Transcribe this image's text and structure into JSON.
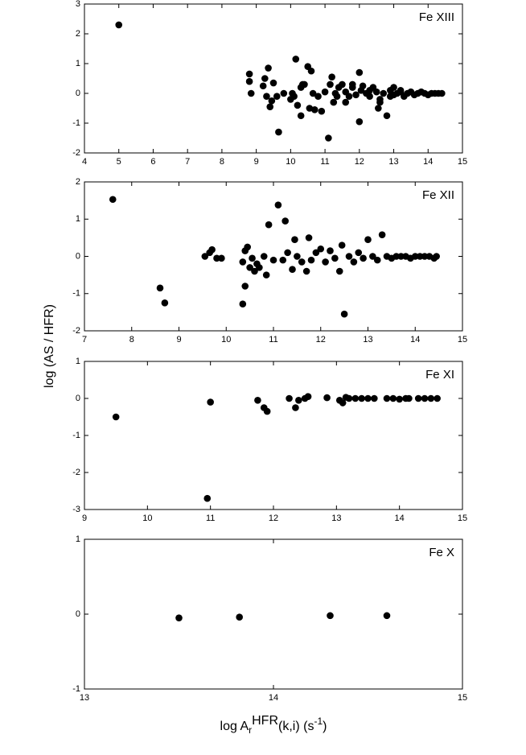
{
  "chart_data": [
    {
      "type": "scatter",
      "label": "Fe XIII",
      "color": "#000000",
      "x": [
        5.0,
        8.8,
        8.8,
        8.85,
        9.2,
        9.25,
        9.3,
        9.35,
        9.4,
        9.45,
        9.5,
        9.6,
        9.65,
        9.8,
        10.0,
        10.05,
        10.1,
        10.15,
        10.2,
        10.3,
        10.3,
        10.35,
        10.4,
        10.5,
        10.55,
        10.6,
        10.65,
        10.7,
        10.8,
        10.9,
        11.0,
        11.1,
        11.15,
        11.2,
        11.25,
        11.3,
        11.35,
        11.4,
        11.5,
        11.6,
        11.7,
        11.8,
        11.9,
        12.0,
        12.05,
        12.1,
        12.2,
        12.3,
        12.4,
        12.5,
        12.55,
        12.6,
        12.7,
        12.8,
        12.9,
        13.0,
        13.1,
        13.2,
        13.3,
        13.4,
        13.5,
        13.6,
        13.7,
        13.8,
        13.9,
        14.0,
        14.1,
        14.2,
        14.3,
        14.4,
        12.0,
        11.8,
        12.3,
        11.6,
        13.0,
        12.6,
        12.9,
        13.2
      ],
      "values": [
        2.3,
        0.65,
        0.4,
        0,
        0.25,
        0.5,
        -0.1,
        0.85,
        -0.45,
        -0.25,
        0.35,
        -0.1,
        -1.3,
        0,
        -0.2,
        0,
        -0.1,
        1.15,
        -0.4,
        0.2,
        -0.75,
        0.3,
        0.3,
        0.9,
        -0.5,
        0.75,
        0,
        -0.55,
        -0.1,
        -0.6,
        0.05,
        -1.5,
        0.3,
        0.55,
        -0.3,
        0,
        -0.1,
        0.2,
        0.3,
        0.05,
        -0.1,
        0.2,
        -0.05,
        -0.95,
        0.1,
        0.25,
        0,
        -0.1,
        0.2,
        0.05,
        -0.5,
        -0.2,
        0,
        -0.75,
        0.1,
        -0.05,
        0,
        0.05,
        -0.1,
        0,
        0.05,
        -0.05,
        0,
        0.05,
        0,
        -0.05,
        0,
        0,
        0,
        0,
        0.7,
        0.3,
        0.1,
        -0.3,
        0.2,
        -0.3,
        -0.1,
        0.1
      ],
      "xlim": [
        4,
        15
      ],
      "ylim": [
        -2,
        3
      ],
      "xticks": [
        4,
        5,
        6,
        7,
        8,
        9,
        10,
        11,
        12,
        13,
        14,
        15
      ],
      "yticks": [
        -2,
        -1,
        0,
        1,
        2,
        3
      ]
    },
    {
      "type": "scatter",
      "label": "Fe XII",
      "color": "#000000",
      "x": [
        7.6,
        8.6,
        8.7,
        9.55,
        9.65,
        9.7,
        9.8,
        9.9,
        10.35,
        10.35,
        10.4,
        10.4,
        10.45,
        10.5,
        10.55,
        10.6,
        10.65,
        10.7,
        10.8,
        10.85,
        10.9,
        11.0,
        11.1,
        11.2,
        11.25,
        11.3,
        11.4,
        11.45,
        11.5,
        11.6,
        11.7,
        11.75,
        11.8,
        11.9,
        12.0,
        12.1,
        12.2,
        12.3,
        12.4,
        12.45,
        12.5,
        12.6,
        12.7,
        12.8,
        12.9,
        13.0,
        13.1,
        13.2,
        13.3,
        13.4,
        13.5,
        13.6,
        13.7,
        13.8,
        13.9,
        14.0,
        14.1,
        14.2,
        14.3,
        14.4,
        14.45
      ],
      "values": [
        1.53,
        -0.85,
        -1.25,
        0,
        0.1,
        0.18,
        -0.05,
        -0.05,
        -0.15,
        -1.28,
        -0.8,
        0.15,
        0.25,
        -0.3,
        -0.05,
        -0.4,
        -0.2,
        -0.3,
        0,
        -0.5,
        0.85,
        -0.1,
        1.38,
        -0.1,
        0.95,
        0.1,
        -0.35,
        0.45,
        0,
        -0.15,
        -0.4,
        0.5,
        -0.1,
        0.1,
        0.2,
        -0.15,
        0.15,
        -0.05,
        -0.4,
        0.3,
        -1.55,
        0,
        -0.15,
        0.1,
        -0.05,
        0.45,
        0,
        -0.1,
        0.58,
        0,
        -0.05,
        0,
        0,
        0,
        -0.05,
        0,
        0,
        0,
        0,
        -0.05,
        0
      ],
      "xlim": [
        7,
        15
      ],
      "ylim": [
        -2,
        2
      ],
      "xticks": [
        7,
        8,
        9,
        10,
        11,
        12,
        13,
        14,
        15
      ],
      "yticks": [
        -2,
        -1,
        0,
        1,
        2
      ]
    },
    {
      "type": "scatter",
      "label": "Fe XI",
      "color": "#000000",
      "x": [
        9.5,
        10.95,
        11.0,
        11.75,
        11.85,
        11.9,
        12.25,
        12.35,
        12.4,
        12.5,
        12.55,
        12.85,
        13.05,
        13.1,
        13.15,
        13.2,
        13.3,
        13.4,
        13.5,
        13.6,
        13.8,
        13.9,
        14.0,
        14.1,
        14.15,
        14.3,
        14.4,
        14.5,
        14.6
      ],
      "values": [
        -0.5,
        -2.7,
        -0.1,
        -0.05,
        -0.25,
        -0.35,
        0,
        -0.25,
        -0.05,
        0,
        0.05,
        0.02,
        -0.05,
        -0.12,
        0.03,
        0,
        0,
        0,
        0,
        0,
        0,
        0,
        -0.02,
        0,
        0,
        0,
        0,
        0,
        0
      ],
      "xlim": [
        9,
        15
      ],
      "ylim": [
        -3,
        1
      ],
      "xticks": [
        9,
        10,
        11,
        12,
        13,
        14,
        15
      ],
      "yticks": [
        -3,
        -2,
        -1,
        0,
        1
      ]
    },
    {
      "type": "scatter",
      "label": "Fe X",
      "color": "#000000",
      "x": [
        13.5,
        13.82,
        14.3,
        14.6
      ],
      "values": [
        -0.05,
        -0.04,
        -0.02,
        -0.02
      ],
      "xlim": [
        13,
        15
      ],
      "ylim": [
        -1,
        1
      ],
      "xticks": [
        13,
        14,
        15
      ],
      "yticks": [
        -1,
        0,
        1
      ]
    }
  ],
  "ylabel": "log (AS / HFR)",
  "xlabel": [
    "log A",
    "r",
    "HFR",
    "(k,i) (s",
    "-1",
    ")"
  ]
}
